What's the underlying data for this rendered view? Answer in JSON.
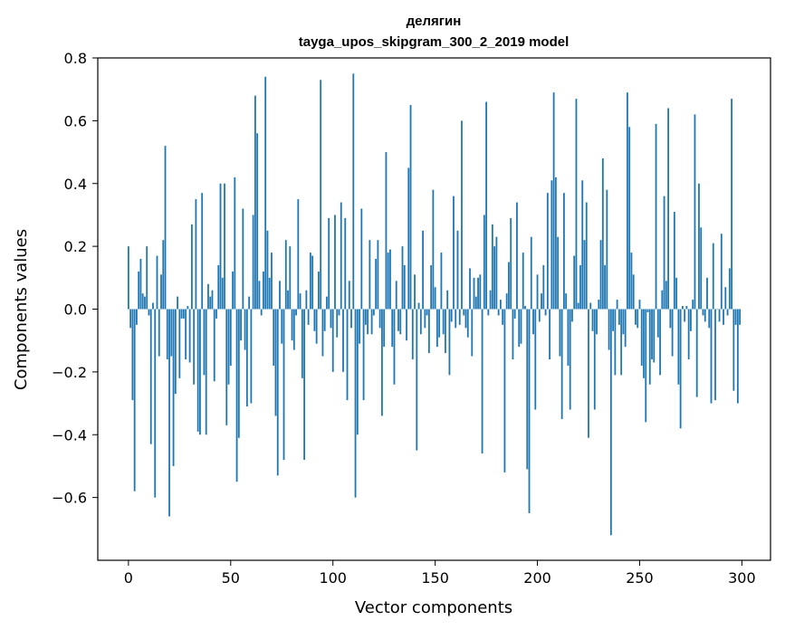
{
  "chart_data": {
    "type": "bar",
    "title": "делягин",
    "subtitle": "tayga_upos_skipgram_300_2_2019 model",
    "xlabel": "Vector components",
    "ylabel": "Components values",
    "xlim": [
      -15,
      314
    ],
    "ylim": [
      -0.8,
      0.8
    ],
    "xticks": [
      0,
      50,
      100,
      150,
      200,
      250,
      300
    ],
    "xtick_labels": [
      "0",
      "50",
      "100",
      "150",
      "200",
      "250",
      "300"
    ],
    "yticks": [
      -0.6,
      -0.4,
      -0.2,
      0.0,
      0.2,
      0.4,
      0.6,
      0.8
    ],
    "ytick_labels": [
      "−0.6",
      "−0.4",
      "−0.2",
      "0.0",
      "0.2",
      "0.4",
      "0.6",
      "0.8"
    ],
    "grid": false,
    "bar_color": "#1f77b4",
    "values": [
      0.2,
      -0.06,
      -0.29,
      -0.58,
      -0.05,
      0.12,
      0.16,
      0.05,
      0.04,
      0.2,
      -0.02,
      -0.43,
      0.02,
      -0.6,
      0.17,
      -0.15,
      0.11,
      0.22,
      0.52,
      -0.16,
      -0.66,
      -0.15,
      -0.5,
      -0.27,
      0.04,
      -0.22,
      -0.03,
      -0.03,
      -0.16,
      0.01,
      -0.17,
      0.27,
      -0.24,
      0.35,
      -0.39,
      -0.4,
      0.37,
      -0.21,
      -0.4,
      0.08,
      0.04,
      0.06,
      -0.23,
      -0.03,
      0.14,
      0.4,
      0.1,
      0.4,
      -0.37,
      -0.24,
      -0.18,
      0.12,
      0.42,
      -0.55,
      -0.41,
      -0.1,
      0.32,
      -0.13,
      -0.31,
      0.04,
      -0.3,
      0.3,
      0.68,
      0.56,
      0.09,
      -0.02,
      0.12,
      0.74,
      0.25,
      0.1,
      0.18,
      -0.18,
      -0.34,
      -0.53,
      0.09,
      -0.11,
      -0.48,
      0.22,
      0.06,
      0.2,
      -0.1,
      -0.13,
      -0.02,
      0.35,
      0.05,
      -0.22,
      -0.48,
      0.06,
      -0.05,
      0.18,
      0.17,
      -0.07,
      -0.11,
      0.12,
      0.73,
      -0.15,
      -0.07,
      0.04,
      0.29,
      -0.06,
      -0.2,
      0.3,
      -0.09,
      -0.02,
      0.34,
      -0.2,
      0.29,
      -0.29,
      0.09,
      -0.06,
      0.75,
      -0.6,
      -0.4,
      -0.11,
      0.32,
      -0.29,
      -0.05,
      -0.08,
      0.22,
      -0.08,
      -0.02,
      0.16,
      0.22,
      -0.06,
      -0.34,
      -0.12,
      0.5,
      0.18,
      0.19,
      -0.12,
      -0.24,
      0.09,
      -0.07,
      -0.08,
      0.2,
      0.14,
      -0.1,
      0.45,
      0.65,
      -0.16,
      0.11,
      -0.45,
      0.02,
      -0.08,
      0.25,
      -0.06,
      -0.02,
      -0.14,
      0.14,
      0.38,
      0.07,
      -0.12,
      -0.09,
      0.18,
      -0.08,
      -0.14,
      0.06,
      -0.21,
      -0.04,
      0.36,
      -0.06,
      0.25,
      -0.05,
      0.6,
      -0.02,
      -0.06,
      -0.09,
      0.13,
      -0.15,
      0.1,
      0.04,
      0.1,
      0.11,
      -0.46,
      0.3,
      0.66,
      -0.02,
      0.06,
      0.27,
      0.2,
      0.23,
      -0.02,
      0.03,
      -0.05,
      -0.52,
      0.05,
      0.15,
      0.29,
      -0.16,
      -0.03,
      0.34,
      -0.12,
      -0.11,
      0.18,
      0.01,
      -0.51,
      -0.65,
      0.23,
      -0.08,
      -0.32,
      0.11,
      -0.04,
      0.05,
      0.14,
      -0.02,
      0.37,
      -0.16,
      0.41,
      0.69,
      0.42,
      0.23,
      -0.15,
      -0.35,
      0.37,
      0.05,
      -0.18,
      -0.32,
      -0.04,
      0.17,
      0.67,
      0.02,
      0.14,
      0.41,
      0.22,
      0.34,
      -0.41,
      0.02,
      -0.07,
      -0.32,
      -0.08,
      0.03,
      0.22,
      0.48,
      0.14,
      0.38,
      -0.13,
      -0.72,
      -0.07,
      -0.21,
      0.03,
      -0.05,
      -0.21,
      -0.08,
      -0.12,
      0.69,
      0.58,
      0.18,
      0.11,
      -0.05,
      -0.06,
      0.03,
      -0.18,
      -0.22,
      -0.36,
      -0.01,
      -0.24,
      -0.16,
      -0.17,
      0.59,
      -0.09,
      -0.21,
      0.06,
      0.36,
      0.09,
      0.64,
      -0.06,
      -0.15,
      0.31,
      0.1,
      -0.24,
      -0.38,
      0.01,
      -0.04,
      0.01,
      -0.16,
      -0.07,
      0.03,
      0.62,
      -0.28,
      0.4,
      0.26,
      -0.02,
      -0.04,
      0.1,
      -0.06,
      -0.3,
      0.21,
      -0.29,
      0.0,
      -0.04,
      0.24,
      -0.05,
      0.07,
      -0.02,
      0.13,
      0.67,
      -0.26,
      -0.05,
      -0.3,
      -0.05
    ]
  }
}
